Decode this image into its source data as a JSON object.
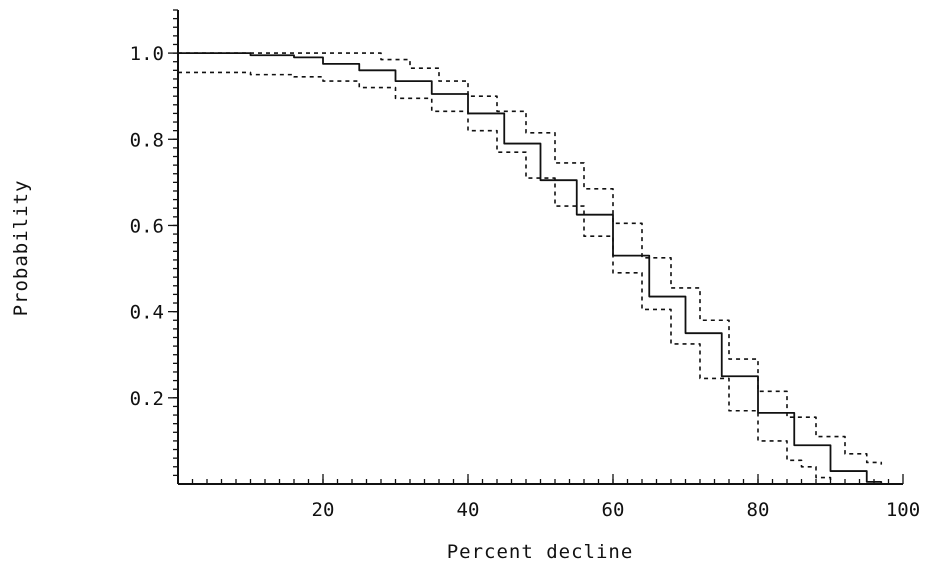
{
  "chart_data": {
    "type": "line",
    "xlabel": "Percent decline",
    "ylabel": "Probability",
    "xlim": [
      0,
      100
    ],
    "ylim": [
      0,
      1.1
    ],
    "x_ticks": [
      20,
      40,
      60,
      80,
      100
    ],
    "y_ticks": [
      0.2,
      0.4,
      0.6,
      0.8,
      1.0
    ],
    "x_tick_labels": [
      "20",
      "40",
      "60",
      "80",
      "100"
    ],
    "y_tick_labels": [
      "0.2",
      "0.4",
      "0.6",
      "0.8",
      "1.0"
    ],
    "grid": false,
    "series": [
      {
        "style": "solid",
        "x": [
          0,
          10,
          16,
          20,
          25,
          30,
          35,
          40,
          45,
          50,
          55,
          60,
          65,
          70,
          75,
          80,
          85,
          90,
          95,
          97
        ],
        "y": [
          1.0,
          0.995,
          0.99,
          0.975,
          0.96,
          0.935,
          0.905,
          0.86,
          0.79,
          0.705,
          0.625,
          0.53,
          0.435,
          0.35,
          0.25,
          0.165,
          0.09,
          0.03,
          0.005,
          0.0
        ]
      },
      {
        "style": "dashed",
        "x": [
          0,
          10,
          16,
          20,
          26,
          28,
          32,
          36,
          40,
          44,
          48,
          52,
          56,
          60,
          64,
          68,
          72,
          76,
          80,
          84,
          88,
          92,
          95,
          97
        ],
        "y": [
          1.0,
          1.0,
          1.0,
          1.0,
          1.0,
          0.985,
          0.965,
          0.935,
          0.9,
          0.865,
          0.815,
          0.745,
          0.685,
          0.605,
          0.525,
          0.455,
          0.38,
          0.29,
          0.215,
          0.155,
          0.11,
          0.07,
          0.05,
          0.045
        ]
      },
      {
        "style": "dashed",
        "x": [
          0,
          10,
          16,
          20,
          25,
          30,
          35,
          40,
          44,
          48,
          52,
          56,
          60,
          64,
          68,
          72,
          76,
          80,
          84,
          86,
          88,
          90
        ],
        "y": [
          0.955,
          0.95,
          0.945,
          0.935,
          0.92,
          0.895,
          0.865,
          0.82,
          0.77,
          0.71,
          0.645,
          0.575,
          0.49,
          0.405,
          0.325,
          0.245,
          0.17,
          0.1,
          0.055,
          0.04,
          0.015,
          0.0
        ]
      }
    ]
  }
}
